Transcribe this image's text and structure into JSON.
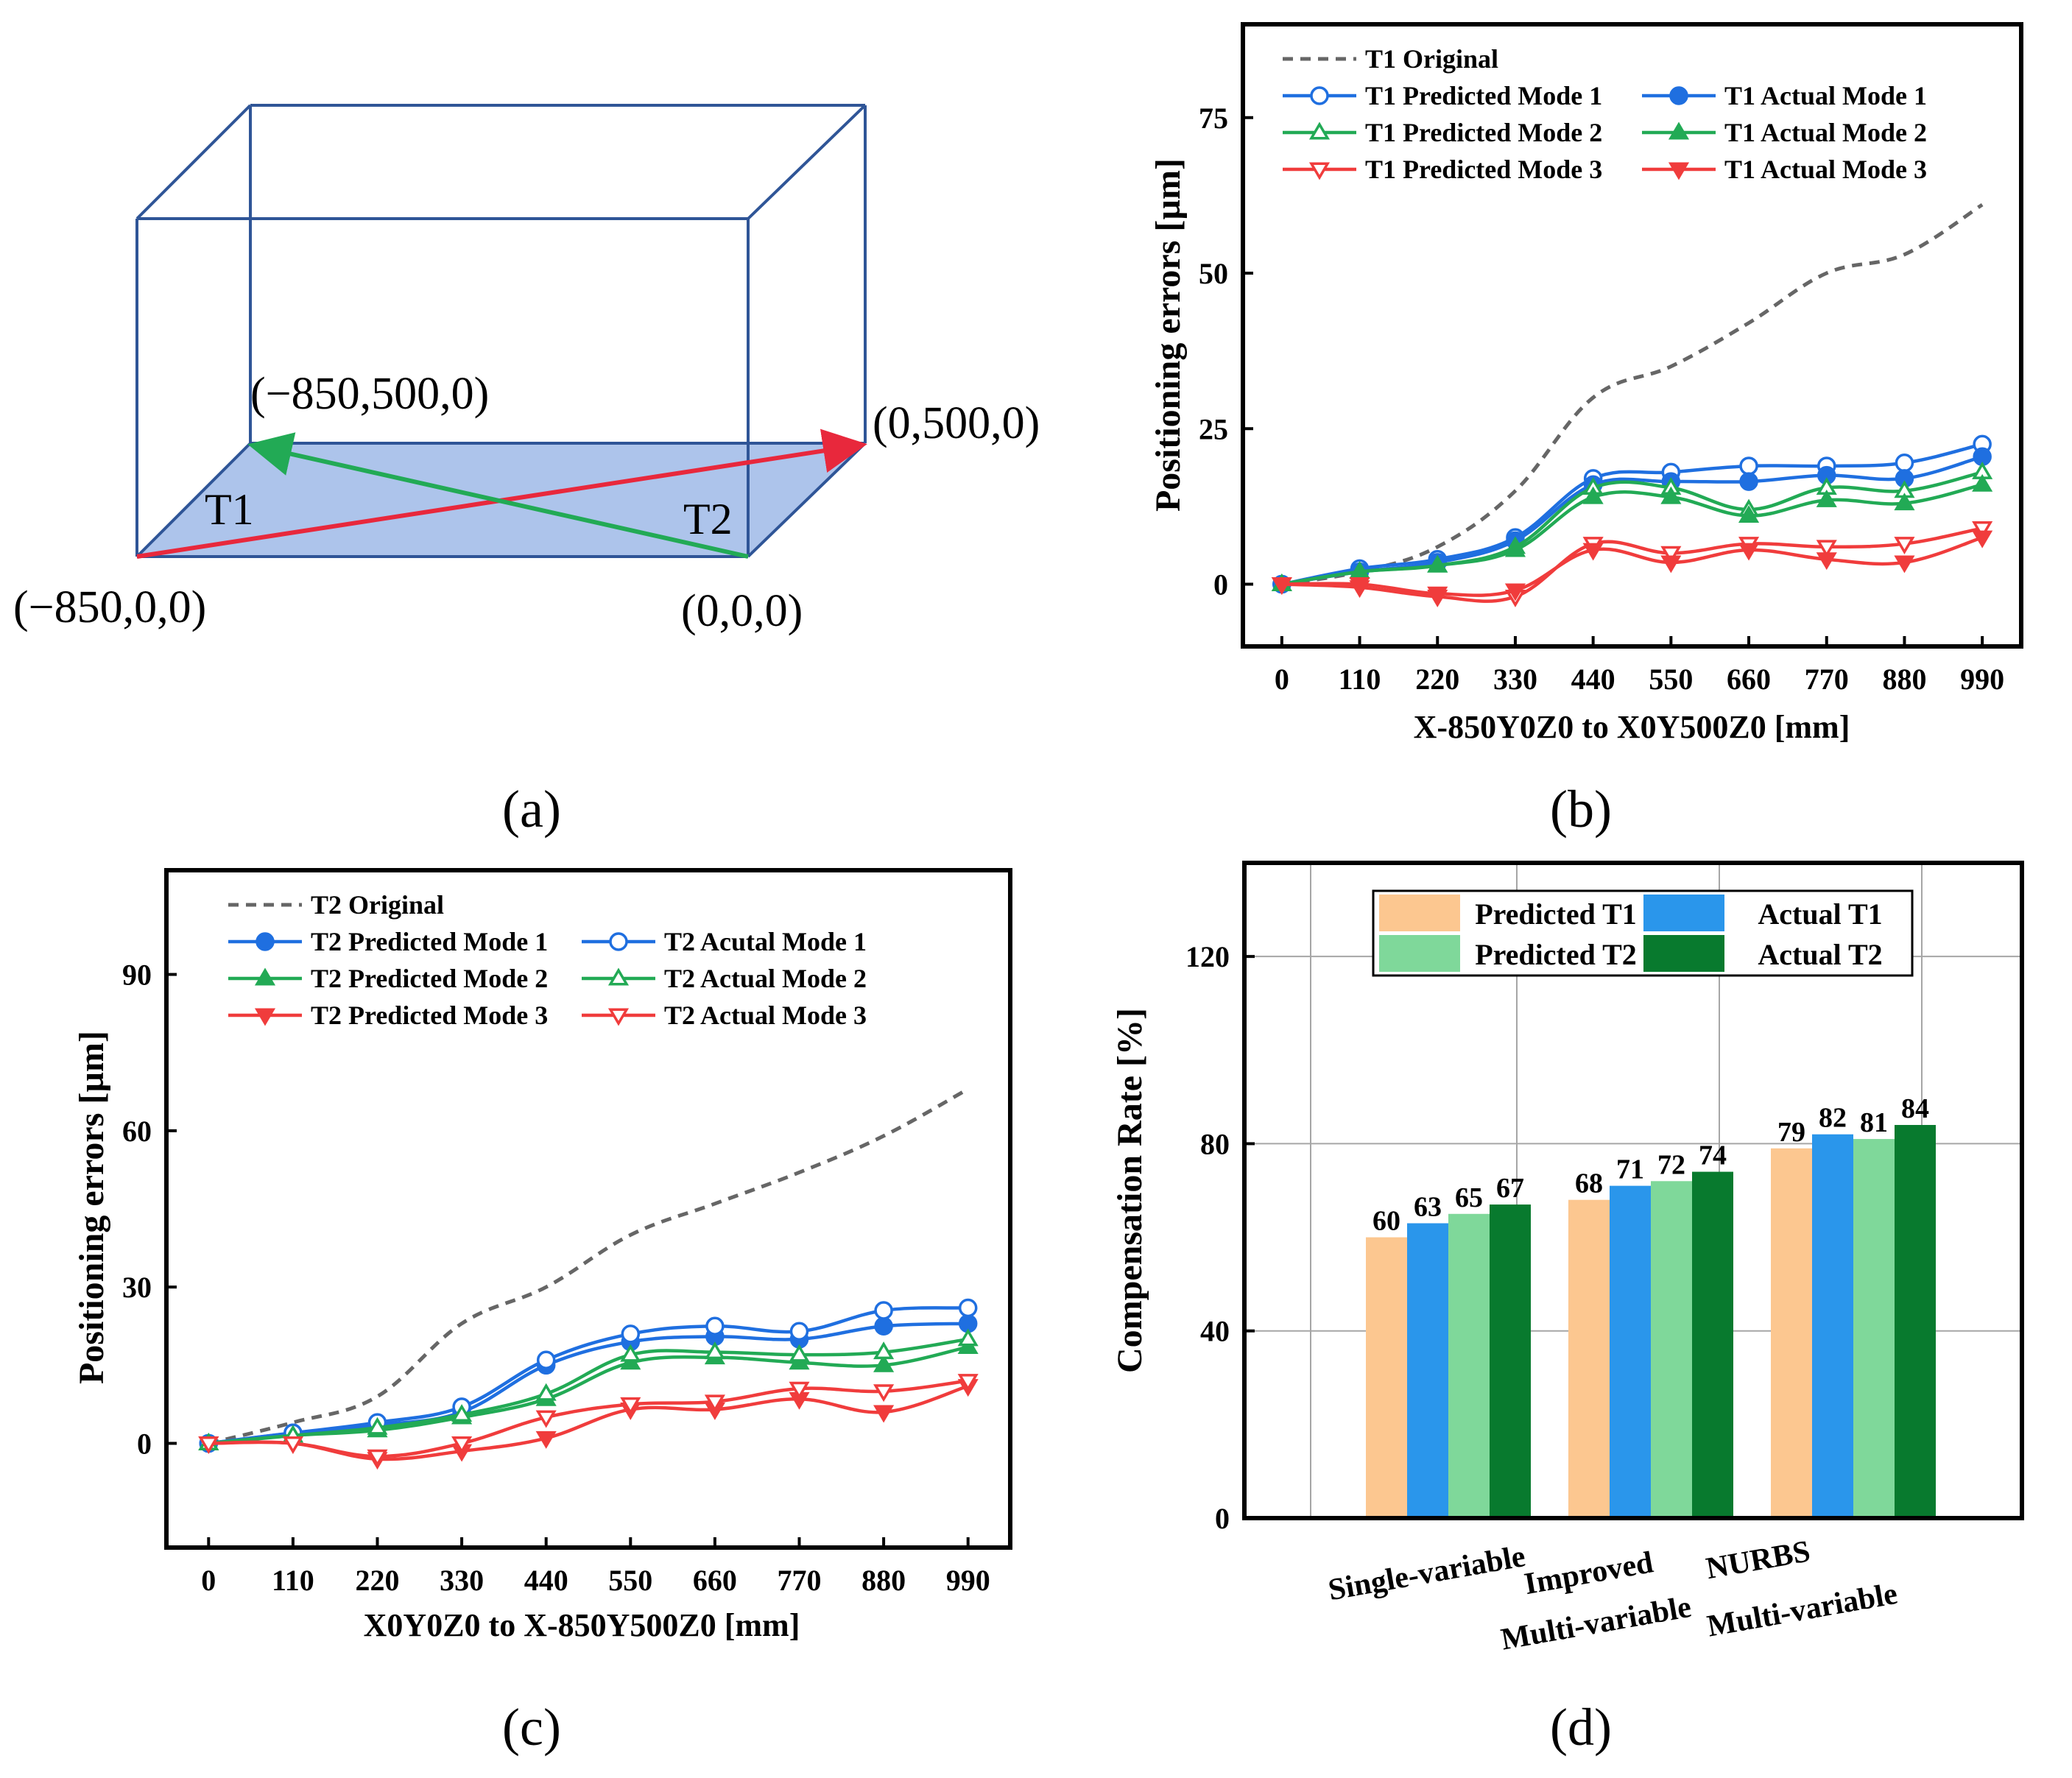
{
  "figure": {
    "panel_labels": [
      "(a)",
      "(b)",
      "(c)",
      "(d)"
    ]
  },
  "diagram_a": {
    "labels": {
      "corner_left_front": "(−850,0,0)",
      "corner_right_front": "(0,0,0)",
      "corner_left_back": "(−850,500,0)",
      "corner_right_back": "(0,500,0)",
      "t1": "T1",
      "t2": "T2"
    },
    "colors": {
      "box": "#2f5597",
      "floor": "#a9c1ea",
      "t1_path": "#e8283c",
      "t2_path": "#22aa55"
    }
  },
  "chart_data": [
    {
      "id": "b",
      "type": "line",
      "xlabel": "X-850Y0Z0 to X0Y500Z0 [mm]",
      "ylabel": "Positioning errors [µm]",
      "x": [
        0,
        110,
        220,
        330,
        440,
        550,
        660,
        770,
        880,
        990
      ],
      "xticks": [
        "0",
        "110",
        "220",
        "330",
        "440",
        "550",
        "660",
        "770",
        "880",
        "990"
      ],
      "yticks": [
        "0",
        "25",
        "50",
        "75"
      ],
      "ytick_values": [
        0,
        25,
        50,
        75
      ],
      "xlim": [
        -55,
        1045
      ],
      "ylim": [
        -10,
        90
      ],
      "series": [
        {
          "name": "T1 Original",
          "color": "#666666",
          "dash": true,
          "marker": "none",
          "values": [
            0,
            2,
            6,
            15,
            30,
            35,
            42,
            50,
            53,
            61
          ]
        },
        {
          "name": "T1 Predicted Mode 1",
          "color": "#1f6fe0",
          "marker": "circle-open",
          "values": [
            0,
            2.5,
            4,
            7.5,
            17,
            18,
            19,
            19,
            19.5,
            22.5
          ]
        },
        {
          "name": "T1 Actual Mode 1",
          "color": "#1f6fe0",
          "marker": "circle-filled",
          "values": [
            0,
            2,
            3.5,
            7,
            16,
            16.5,
            16.5,
            17.5,
            17,
            20.5
          ]
        },
        {
          "name": "T1 Predicted Mode 2",
          "color": "#22aa55",
          "marker": "triangle-open",
          "values": [
            0,
            2,
            3,
            6,
            15.5,
            15.5,
            12,
            15.5,
            15,
            18
          ]
        },
        {
          "name": "T1 Actual Mode 2",
          "color": "#22aa55",
          "marker": "triangle-filled",
          "values": [
            0,
            2,
            3,
            5.5,
            14,
            14,
            11,
            13.5,
            13,
            16
          ]
        },
        {
          "name": "T1 Predicted Mode 3",
          "color": "#f03c3c",
          "marker": "triangle-down-open",
          "values": [
            0,
            -0.5,
            -2,
            -2,
            6.5,
            5,
            6.5,
            6,
            6.5,
            9
          ]
        },
        {
          "name": "T1 Actual Mode 3",
          "color": "#f03c3c",
          "marker": "triangle-down-filled",
          "values": [
            0,
            0,
            -1.5,
            -1,
            5.5,
            3.5,
            5.5,
            4,
            3.5,
            7.5
          ]
        }
      ],
      "legend": "top-left, two columns"
    },
    {
      "id": "c",
      "type": "line",
      "xlabel": "X0Y0Z0 to X-850Y500Z0 [mm]",
      "ylabel": "Positioning errors [µm]",
      "x": [
        0,
        110,
        220,
        330,
        440,
        550,
        660,
        770,
        880,
        990
      ],
      "xticks": [
        "0",
        "110",
        "220",
        "330",
        "440",
        "550",
        "660",
        "770",
        "880",
        "990"
      ],
      "yticks": [
        "0",
        "30",
        "60",
        "90"
      ],
      "ytick_values": [
        0,
        30,
        60,
        90
      ],
      "xlim": [
        -55,
        1045
      ],
      "ylim": [
        -20,
        110
      ],
      "series": [
        {
          "name": "T2 Original",
          "color": "#666666",
          "dash": true,
          "marker": "none",
          "values": [
            0,
            4,
            9,
            23,
            30,
            40,
            46,
            52,
            59,
            68
          ]
        },
        {
          "name": "T2 Predicted Mode 1",
          "color": "#1f6fe0",
          "marker": "circle-filled",
          "values": [
            0,
            2,
            3.5,
            6,
            15,
            19.5,
            20.5,
            20,
            22.5,
            23
          ]
        },
        {
          "name": "T2 Acutal Mode 1",
          "color": "#1f6fe0",
          "marker": "circle-open",
          "values": [
            0,
            2,
            4,
            7,
            16,
            21,
            22.5,
            21.5,
            25.5,
            26
          ]
        },
        {
          "name": "T2 Predicted Mode 2",
          "color": "#22aa55",
          "marker": "triangle-filled",
          "values": [
            0,
            1.5,
            2.5,
            5,
            8.5,
            15.5,
            16.5,
            15.5,
            15,
            18.5
          ]
        },
        {
          "name": "T2 Actual Mode 2",
          "color": "#22aa55",
          "marker": "triangle-open",
          "values": [
            0,
            1.5,
            3,
            5.5,
            9.5,
            17,
            17.5,
            17,
            17.5,
            20
          ]
        },
        {
          "name": "T2 Predicted Mode 3",
          "color": "#f03c3c",
          "marker": "triangle-down-filled",
          "values": [
            0,
            0,
            -3,
            -1.5,
            1,
            6.5,
            6.5,
            8.5,
            6,
            11
          ]
        },
        {
          "name": "T2 Actual Mode 3",
          "color": "#f03c3c",
          "marker": "triangle-down-open",
          "values": [
            0,
            0,
            -2.5,
            0,
            5,
            7.5,
            8,
            10.5,
            10,
            12
          ]
        }
      ],
      "legend": "top-left, two columns"
    },
    {
      "id": "d",
      "type": "bar",
      "xlabel": "",
      "ylabel": "Compensation Rate [%]",
      "categories": [
        [
          "Single-variable"
        ],
        [
          "Improved",
          "Multi-variable"
        ],
        [
          "NURBS",
          "Multi-variable"
        ]
      ],
      "yticks": [
        "0",
        "40",
        "80",
        "120"
      ],
      "ytick_values": [
        0,
        40,
        80,
        120
      ],
      "ylim": [
        0,
        140
      ],
      "grid": true,
      "series": [
        {
          "name": "Predicted T1",
          "color": "#fcc790",
          "values": [
            60,
            68,
            79
          ]
        },
        {
          "name": "Actual T1",
          "color": "#2a96eb",
          "values": [
            63,
            71,
            82
          ]
        },
        {
          "name": "Predicted T2",
          "color": "#7fd89a",
          "values": [
            65,
            72,
            81
          ]
        },
        {
          "name": "Actual T2",
          "color": "#087a2e",
          "values": [
            67,
            74,
            84
          ]
        }
      ],
      "value_labels": [
        [
          "60",
          "63",
          "65",
          "67"
        ],
        [
          "68",
          "71",
          "72",
          "74"
        ],
        [
          "79",
          "82",
          "81",
          "84"
        ]
      ],
      "legend": "top-center, two columns"
    }
  ]
}
